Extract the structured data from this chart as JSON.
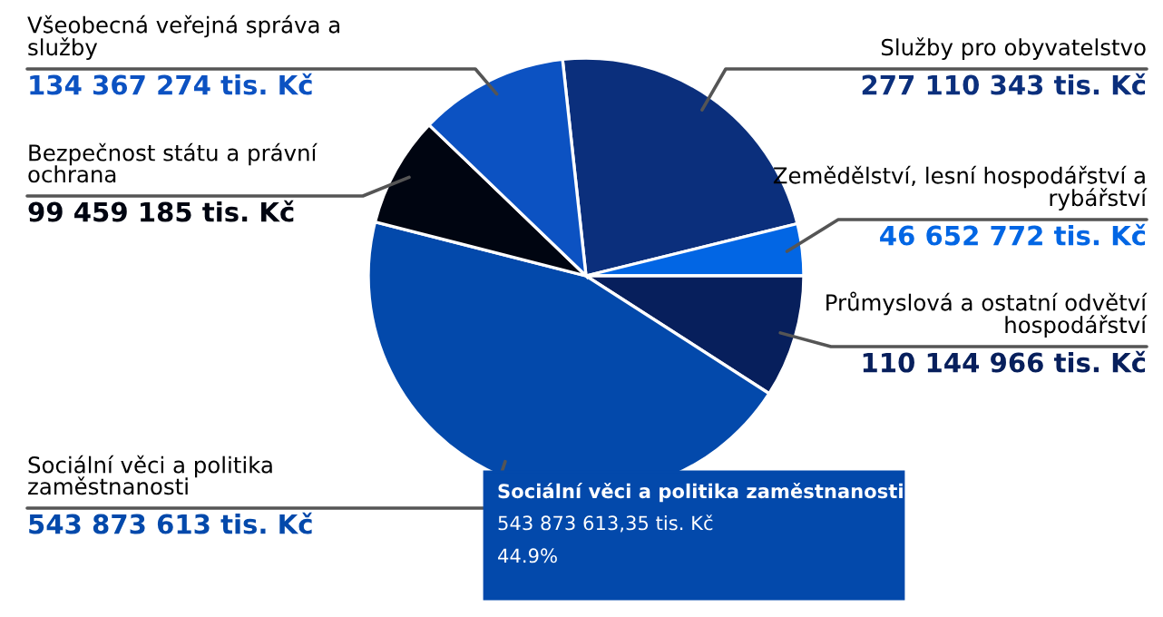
{
  "chart_data": {
    "type": "pie",
    "categories": [
      "Služby pro obyvatelstvo",
      "Zemědělství, lesní hospodářství a rybářství",
      "Průmyslová a ostatní odvětví hospodářství",
      "Sociální věci a politika zaměstnanosti",
      "Bezpečnost státu a právní ochrana",
      "Všeobecná veřejná správa a služby"
    ],
    "values": [
      277110343,
      46652772,
      110144966,
      543873613,
      99459185,
      134367274
    ],
    "colors": [
      "#0b2f7c",
      "#0266e4",
      "#071f5c",
      "#0349ab",
      "#000511",
      "#0c52c2"
    ],
    "value_labels": [
      "277 110 343 tis. Kč",
      "46 652 772 tis. Kč",
      "110 144 966 tis. Kč",
      "543 873 613 tis. Kč",
      "99 459 185 tis. Kč",
      "134 367 274 tis. Kč"
    ],
    "annotations": [
      "Sociální věci a politika zaměstnanosti",
      "543 873 613,35 tis. Kč",
      "44.9%"
    ],
    "legend": false
  }
}
